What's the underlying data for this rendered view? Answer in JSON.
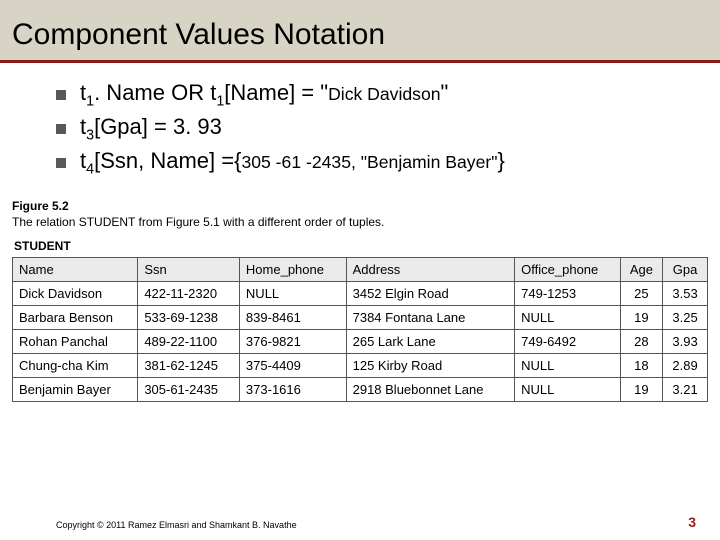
{
  "colors": {
    "title_band_bg": "#d8d4c5",
    "title_underline": "#8b1a1a",
    "page_num_color": "#9b1c1c",
    "bullet_color": "#595959",
    "table_header_bg": "#eaeaea",
    "table_border": "#555555"
  },
  "title": "Component Values Notation",
  "bullets": {
    "b1": {
      "p1": "t",
      "sub1": "1",
      "p2": ". Name OR t",
      "sub2": "1",
      "p3": "[Name] = \"",
      "small": "Dick Davidson",
      "p4": "\""
    },
    "b2": {
      "p1": "t",
      "sub1": "3",
      "p2": "[Gpa] = 3. 93"
    },
    "b3": {
      "p1": "t",
      "sub1": "4",
      "p2": "[Ssn, Name] ={",
      "small": "305 -61 -2435, \"Benjamin Bayer\"",
      "p3": "}"
    }
  },
  "figure": {
    "label": "Figure 5.2",
    "caption": "The relation STUDENT from Figure 5.1 with a different order of tuples.",
    "table_title": "STUDENT",
    "columns": [
      "Name",
      "Ssn",
      "Home_phone",
      "Address",
      "Office_phone",
      "Age",
      "Gpa"
    ],
    "rows": [
      [
        "Dick Davidson",
        "422-11-2320",
        "NULL",
        "3452 Elgin Road",
        "749-1253",
        "25",
        "3.53"
      ],
      [
        "Barbara Benson",
        "533-69-1238",
        "839-8461",
        "7384 Fontana Lane",
        "NULL",
        "19",
        "3.25"
      ],
      [
        "Rohan Panchal",
        "489-22-1100",
        "376-9821",
        "265 Lark Lane",
        "749-6492",
        "28",
        "3.93"
      ],
      [
        "Chung-cha Kim",
        "381-62-1245",
        "375-4409",
        "125 Kirby Road",
        "NULL",
        "18",
        "2.89"
      ],
      [
        "Benjamin Bayer",
        "305-61-2435",
        "373-1616",
        "2918 Bluebonnet Lane",
        "NULL",
        "19",
        "3.21"
      ]
    ]
  },
  "footer": {
    "copyright": "Copyright © 2011 Ramez Elmasri and Shamkant B. Navathe",
    "page": "3"
  }
}
